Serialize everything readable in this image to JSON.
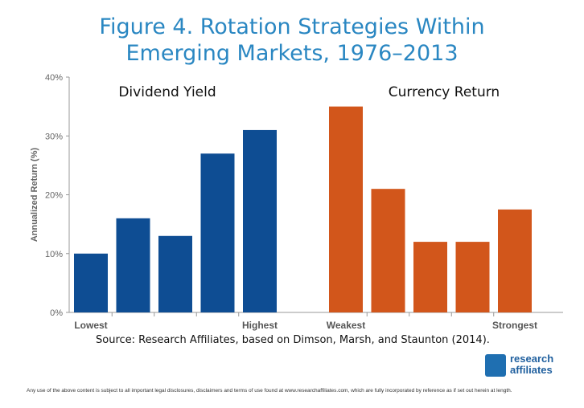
{
  "title_line1": "Figure 4. Rotation Strategies Within",
  "title_line2": "Emerging Markets, 1976–2013",
  "source": "Source: Research Affiliates, based on Dimson, Marsh, and Staunton (2014).",
  "disclaimer": "Any use of the above content is subject to all important legal disclosures, disclaimers and terms of use found at www.researchaffiliates.com, which are fully incorporated by reference as if set out herein at length.",
  "logo": {
    "line1": "research",
    "line2": "affiliates",
    "icon": "research-affiliates-logo-icon"
  },
  "colors": {
    "title": "#2a87c2",
    "dividend": "#0e4d93",
    "currency": "#d2561b",
    "axis": "#888888"
  },
  "chart_data": {
    "type": "bar",
    "ylabel": "Annualized Return (%)",
    "ylim": [
      0,
      40
    ],
    "yticks": [
      "0%",
      "10%",
      "20%",
      "30%",
      "40%"
    ],
    "groups": [
      {
        "name": "Dividend Yield",
        "values": [
          10,
          16,
          13,
          27,
          31
        ],
        "edge_labels": [
          "Lowest",
          "Highest"
        ]
      },
      {
        "name": "Currency Return",
        "values": [
          35,
          21,
          12,
          12,
          17.5
        ],
        "edge_labels": [
          "Weakest",
          "Strongest"
        ]
      }
    ]
  }
}
